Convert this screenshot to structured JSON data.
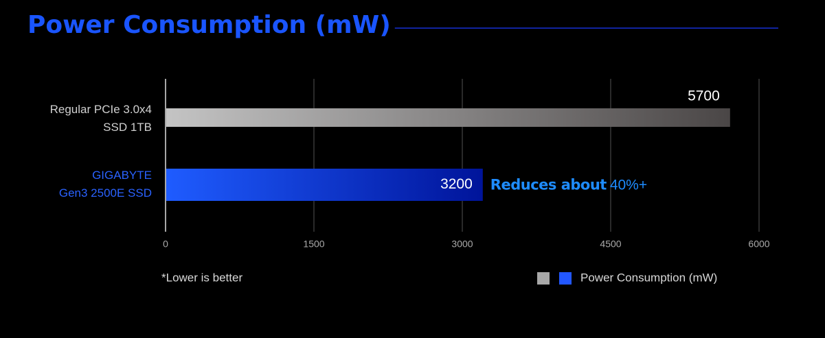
{
  "chart_data": {
    "type": "bar",
    "orientation": "horizontal",
    "title": "Power Consumption (mW)",
    "categories": [
      "Regular PCIe 3.0x4\nSSD 1TB",
      "GIGABYTE\nGen3 2500E SSD"
    ],
    "category_colors": [
      "#d0d0d0",
      "#2a62ff"
    ],
    "series": [
      {
        "name": "Power Consumption (mW)",
        "values": [
          5700,
          3200
        ],
        "gradients": [
          [
            "#c4c4c4",
            "#4a4646"
          ],
          [
            "#1f5cff",
            "#00149a"
          ]
        ]
      }
    ],
    "xlim": [
      0,
      6000
    ],
    "xticks": [
      0,
      1500,
      3000,
      4500,
      6000
    ],
    "grid": true,
    "annotation": [
      "Reduces about",
      "40%+"
    ],
    "footnote": "*Lower is better",
    "legend_colors": [
      "#a8a8a8",
      "#2257ff"
    ]
  }
}
